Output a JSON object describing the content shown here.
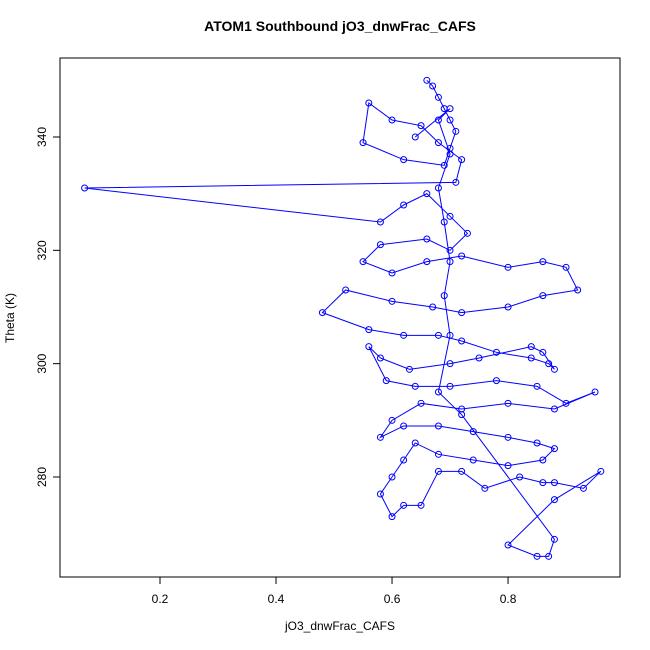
{
  "chart_data": {
    "type": "scatter",
    "title": "ATOM1 Southbound jO3_dnwFrac_CAFS",
    "x_label": "jO3_dnwFrac_CAFS",
    "y_label": "Theta (K)",
    "color": "#0000ff",
    "lines": true,
    "xlim": [
      0.0276,
      0.993
    ],
    "ylim": [
      262.35,
      353.94
    ],
    "xticks": [
      0.2,
      0.4,
      0.6,
      0.8
    ],
    "yticks": [
      280,
      300,
      320,
      340
    ],
    "x": [
      0.66,
      0.67,
      0.68,
      0.69,
      0.7,
      0.71,
      0.7,
      0.69,
      0.62,
      0.55,
      0.56,
      0.6,
      0.65,
      0.68,
      0.72,
      0.71,
      0.07,
      0.58,
      0.62,
      0.66,
      0.7,
      0.73,
      0.7,
      0.66,
      0.58,
      0.55,
      0.6,
      0.66,
      0.72,
      0.8,
      0.86,
      0.9,
      0.92,
      0.86,
      0.8,
      0.72,
      0.67,
      0.6,
      0.52,
      0.48,
      0.56,
      0.62,
      0.68,
      0.72,
      0.78,
      0.84,
      0.87,
      0.88,
      0.86,
      0.84,
      0.75,
      0.7,
      0.63,
      0.58,
      0.56,
      0.59,
      0.64,
      0.7,
      0.78,
      0.85,
      0.9,
      0.95,
      0.88,
      0.8,
      0.72,
      0.65,
      0.6,
      0.58,
      0.62,
      0.68,
      0.74,
      0.8,
      0.85,
      0.88,
      0.86,
      0.8,
      0.74,
      0.68,
      0.64,
      0.62,
      0.6,
      0.58,
      0.6,
      0.62,
      0.65,
      0.68,
      0.72,
      0.76,
      0.82,
      0.86,
      0.88,
      0.93,
      0.96,
      0.88,
      0.8,
      0.85,
      0.87,
      0.88,
      0.72,
      0.68,
      0.7,
      0.69,
      0.7,
      0.69,
      0.68,
      0.7,
      0.68,
      0.7,
      0.64
    ],
    "y": [
      350,
      349,
      347,
      345,
      343,
      341,
      338,
      335,
      336,
      339,
      346,
      343,
      342,
      339,
      336,
      332,
      331,
      325,
      328,
      330,
      326,
      323,
      320,
      322,
      321,
      318,
      316,
      318,
      319,
      317,
      318,
      317,
      313,
      312,
      310,
      309,
      310,
      311,
      313,
      309,
      306,
      305,
      305,
      304,
      302,
      301,
      300,
      299,
      302,
      303,
      301,
      300,
      299,
      301,
      303,
      297,
      296,
      296,
      297,
      296,
      293,
      295,
      292,
      293,
      292,
      293,
      290,
      287,
      289,
      289,
      288,
      287,
      286,
      285,
      283,
      282,
      283,
      284,
      286,
      283,
      280,
      277,
      273,
      275,
      275,
      281,
      281,
      278,
      280,
      279,
      279,
      278,
      281,
      276,
      268,
      266,
      266,
      269,
      291,
      295,
      305,
      312,
      318,
      325,
      331,
      337,
      343,
      345,
      340
    ]
  }
}
